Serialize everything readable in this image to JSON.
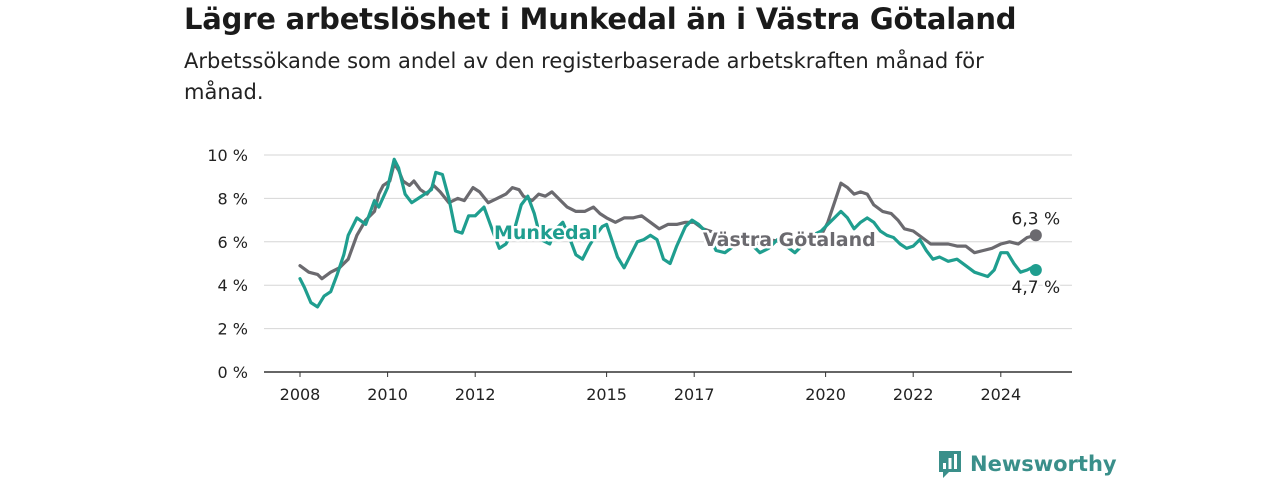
{
  "header": {
    "title": "Lägre arbetslöshet i Munkedal än i Västra Götaland",
    "subtitle": "Arbetssökande som andel av den registerbaserade arbetskraften månad för månad."
  },
  "brand": {
    "name": "Newsworthy",
    "icon": "newsworthy-logo-icon",
    "color": "#3a8f8a"
  },
  "chart_data": {
    "type": "line",
    "x_ticks": [
      "2008",
      "2010",
      "2012",
      "2015",
      "2017",
      "2020",
      "2022",
      "2024"
    ],
    "y_ticks": [
      "0 %",
      "2 %",
      "4 %",
      "6 %",
      "8 %",
      "10 %"
    ],
    "ylim": [
      0,
      10
    ],
    "grid": true,
    "series": [
      {
        "name": "Västra Götaland",
        "color": "#6b6a6f",
        "end_label": "6,3 %",
        "points": [
          [
            2008,
            4.9
          ],
          [
            2008.2,
            4.6
          ],
          [
            2008.4,
            4.5
          ],
          [
            2008.5,
            4.3
          ],
          [
            2008.7,
            4.6
          ],
          [
            2008.9,
            4.8
          ],
          [
            2009.1,
            5.2
          ],
          [
            2009.3,
            6.3
          ],
          [
            2009.5,
            7.0
          ],
          [
            2009.7,
            7.4
          ],
          [
            2009.8,
            8.2
          ],
          [
            2009.9,
            8.6
          ],
          [
            2010.05,
            8.8
          ],
          [
            2010.15,
            9.6
          ],
          [
            2010.25,
            9.3
          ],
          [
            2010.35,
            8.8
          ],
          [
            2010.5,
            8.6
          ],
          [
            2010.6,
            8.8
          ],
          [
            2010.75,
            8.4
          ],
          [
            2010.9,
            8.2
          ],
          [
            2011.05,
            8.6
          ],
          [
            2011.2,
            8.3
          ],
          [
            2011.4,
            7.8
          ],
          [
            2011.6,
            8.0
          ],
          [
            2011.75,
            7.9
          ],
          [
            2011.95,
            8.5
          ],
          [
            2012.1,
            8.3
          ],
          [
            2012.3,
            7.8
          ],
          [
            2012.5,
            8.0
          ],
          [
            2012.7,
            8.2
          ],
          [
            2012.85,
            8.5
          ],
          [
            2013.0,
            8.4
          ],
          [
            2013.1,
            8.1
          ],
          [
            2013.3,
            7.9
          ],
          [
            2013.45,
            8.2
          ],
          [
            2013.6,
            8.1
          ],
          [
            2013.75,
            8.3
          ],
          [
            2013.9,
            8.0
          ],
          [
            2014.1,
            7.6
          ],
          [
            2014.3,
            7.4
          ],
          [
            2014.5,
            7.4
          ],
          [
            2014.7,
            7.6
          ],
          [
            2014.85,
            7.3
          ],
          [
            2015.0,
            7.1
          ],
          [
            2015.2,
            6.9
          ],
          [
            2015.4,
            7.1
          ],
          [
            2015.6,
            7.1
          ],
          [
            2015.8,
            7.2
          ],
          [
            2016.0,
            6.9
          ],
          [
            2016.2,
            6.6
          ],
          [
            2016.4,
            6.8
          ],
          [
            2016.6,
            6.8
          ],
          [
            2016.8,
            6.9
          ],
          [
            2017.0,
            6.9
          ],
          [
            2017.2,
            6.6
          ],
          [
            2017.5,
            6.4
          ],
          [
            2017.8,
            6.2
          ],
          [
            2018.1,
            6.0
          ],
          [
            2018.4,
            5.9
          ],
          [
            2018.7,
            6.1
          ],
          [
            2019.0,
            6.0
          ],
          [
            2019.3,
            6.1
          ],
          [
            2019.6,
            6.2
          ],
          [
            2019.9,
            6.3
          ],
          [
            2020.05,
            6.9
          ],
          [
            2020.2,
            7.8
          ],
          [
            2020.35,
            8.7
          ],
          [
            2020.5,
            8.5
          ],
          [
            2020.65,
            8.2
          ],
          [
            2020.8,
            8.3
          ],
          [
            2020.95,
            8.2
          ],
          [
            2021.1,
            7.7
          ],
          [
            2021.3,
            7.4
          ],
          [
            2021.5,
            7.3
          ],
          [
            2021.65,
            7.0
          ],
          [
            2021.8,
            6.6
          ],
          [
            2022.0,
            6.5
          ],
          [
            2022.2,
            6.2
          ],
          [
            2022.4,
            5.9
          ],
          [
            2022.6,
            5.9
          ],
          [
            2022.8,
            5.9
          ],
          [
            2023.0,
            5.8
          ],
          [
            2023.2,
            5.8
          ],
          [
            2023.4,
            5.5
          ],
          [
            2023.6,
            5.6
          ],
          [
            2023.8,
            5.7
          ],
          [
            2024.0,
            5.9
          ],
          [
            2024.2,
            6.0
          ],
          [
            2024.4,
            5.9
          ],
          [
            2024.6,
            6.2
          ],
          [
            2024.8,
            6.3
          ]
        ]
      },
      {
        "name": "Munkedal",
        "color": "#1f9e8f",
        "end_label": "4,7 %",
        "points": [
          [
            2008,
            4.3
          ],
          [
            2008.1,
            3.9
          ],
          [
            2008.25,
            3.2
          ],
          [
            2008.4,
            3.0
          ],
          [
            2008.55,
            3.5
          ],
          [
            2008.7,
            3.7
          ],
          [
            2008.85,
            4.5
          ],
          [
            2009.0,
            5.4
          ],
          [
            2009.1,
            6.3
          ],
          [
            2009.3,
            7.1
          ],
          [
            2009.5,
            6.8
          ],
          [
            2009.7,
            7.9
          ],
          [
            2009.8,
            7.6
          ],
          [
            2010.0,
            8.5
          ],
          [
            2010.15,
            9.8
          ],
          [
            2010.25,
            9.4
          ],
          [
            2010.4,
            8.2
          ],
          [
            2010.55,
            7.8
          ],
          [
            2010.7,
            8.0
          ],
          [
            2010.85,
            8.2
          ],
          [
            2011.0,
            8.4
          ],
          [
            2011.1,
            9.2
          ],
          [
            2011.25,
            9.1
          ],
          [
            2011.4,
            8.0
          ],
          [
            2011.55,
            6.5
          ],
          [
            2011.7,
            6.4
          ],
          [
            2011.85,
            7.2
          ],
          [
            2012.0,
            7.2
          ],
          [
            2012.2,
            7.6
          ],
          [
            2012.4,
            6.5
          ],
          [
            2012.55,
            5.7
          ],
          [
            2012.7,
            5.9
          ],
          [
            2012.9,
            6.6
          ],
          [
            2013.05,
            7.7
          ],
          [
            2013.2,
            8.1
          ],
          [
            2013.35,
            7.3
          ],
          [
            2013.5,
            6.1
          ],
          [
            2013.7,
            5.9
          ],
          [
            2013.85,
            6.6
          ],
          [
            2014.0,
            6.9
          ],
          [
            2014.15,
            6.2
          ],
          [
            2014.3,
            5.4
          ],
          [
            2014.45,
            5.2
          ],
          [
            2014.6,
            5.8
          ],
          [
            2014.75,
            6.3
          ],
          [
            2014.9,
            6.7
          ],
          [
            2015.0,
            6.8
          ],
          [
            2015.1,
            6.2
          ],
          [
            2015.25,
            5.3
          ],
          [
            2015.4,
            4.8
          ],
          [
            2015.55,
            5.4
          ],
          [
            2015.7,
            6.0
          ],
          [
            2015.85,
            6.1
          ],
          [
            2016.0,
            6.3
          ],
          [
            2016.15,
            6.1
          ],
          [
            2016.3,
            5.2
          ],
          [
            2016.45,
            5.0
          ],
          [
            2016.6,
            5.8
          ],
          [
            2016.8,
            6.7
          ],
          [
            2016.95,
            7.0
          ],
          [
            2017.1,
            6.8
          ],
          [
            2017.3,
            6.4
          ],
          [
            2017.5,
            5.6
          ],
          [
            2017.7,
            5.5
          ],
          [
            2017.9,
            5.8
          ],
          [
            2018.1,
            6.2
          ],
          [
            2018.3,
            5.9
          ],
          [
            2018.5,
            5.5
          ],
          [
            2018.7,
            5.7
          ],
          [
            2018.9,
            6.1
          ],
          [
            2019.1,
            5.8
          ],
          [
            2019.3,
            5.5
          ],
          [
            2019.5,
            5.9
          ],
          [
            2019.7,
            6.3
          ],
          [
            2019.9,
            6.5
          ],
          [
            2020.05,
            6.8
          ],
          [
            2020.2,
            7.1
          ],
          [
            2020.35,
            7.4
          ],
          [
            2020.5,
            7.1
          ],
          [
            2020.65,
            6.6
          ],
          [
            2020.8,
            6.9
          ],
          [
            2020.95,
            7.1
          ],
          [
            2021.1,
            6.9
          ],
          [
            2021.25,
            6.5
          ],
          [
            2021.4,
            6.3
          ],
          [
            2021.55,
            6.2
          ],
          [
            2021.7,
            5.9
          ],
          [
            2021.85,
            5.7
          ],
          [
            2022.0,
            5.8
          ],
          [
            2022.15,
            6.1
          ],
          [
            2022.3,
            5.6
          ],
          [
            2022.45,
            5.2
          ],
          [
            2022.6,
            5.3
          ],
          [
            2022.8,
            5.1
          ],
          [
            2023.0,
            5.2
          ],
          [
            2023.2,
            4.9
          ],
          [
            2023.4,
            4.6
          ],
          [
            2023.55,
            4.5
          ],
          [
            2023.7,
            4.4
          ],
          [
            2023.85,
            4.7
          ],
          [
            2024.0,
            5.5
          ],
          [
            2024.15,
            5.5
          ],
          [
            2024.3,
            5.0
          ],
          [
            2024.45,
            4.6
          ],
          [
            2024.6,
            4.7
          ],
          [
            2024.7,
            4.8
          ],
          [
            2024.8,
            4.7
          ]
        ]
      }
    ]
  }
}
